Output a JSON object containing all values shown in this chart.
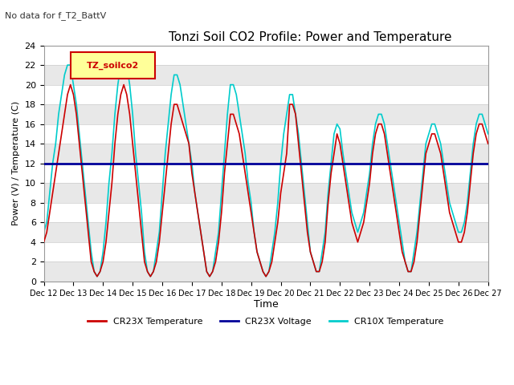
{
  "title": "Tonzi Soil CO2 Profile: Power and Temperature",
  "subtitle": "No data for f_T2_BattV",
  "ylabel": "Power (V) / Temperature (C)",
  "xlabel": "Time",
  "ylim": [
    0,
    24
  ],
  "yticks": [
    0,
    2,
    4,
    6,
    8,
    10,
    12,
    14,
    16,
    18,
    20,
    22,
    24
  ],
  "xtick_labels": [
    "Dec 12",
    "Dec 13",
    "Dec 14",
    "Dec 15",
    "Dec 16",
    "Dec 17",
    "Dec 18",
    "Dec 19",
    "Dec 20",
    "Dec 21",
    "Dec 22",
    "Dec 23",
    "Dec 24",
    "Dec 25",
    "Dec 26",
    "Dec 27"
  ],
  "legend_box_label": "TZ_soilco2",
  "legend_box_color": "#FFFF99",
  "legend_box_edge": "#CC0000",
  "band_colors": [
    "#E8E8E8",
    "#FFFFFF"
  ],
  "cr23x_temp_color": "#CC0000",
  "cr23x_volt_color": "#000099",
  "cr10x_temp_color": "#00CCCC",
  "voltage_value": 12.0,
  "cr23x_temp_x": [
    12,
    12.1,
    12.2,
    12.3,
    12.4,
    12.5,
    12.6,
    12.7,
    12.8,
    12.9,
    13,
    13.1,
    13.2,
    13.3,
    13.4,
    13.5,
    13.6,
    13.7,
    13.8,
    13.9,
    14,
    14.1,
    14.2,
    14.3,
    14.4,
    14.5,
    14.6,
    14.7,
    14.8,
    14.9,
    15,
    15.1,
    15.2,
    15.3,
    15.4,
    15.5,
    15.6,
    15.7,
    15.8,
    15.9,
    16,
    16.1,
    16.2,
    16.3,
    16.4,
    16.5,
    16.6,
    16.7,
    16.8,
    16.9,
    17,
    17.1,
    17.2,
    17.3,
    17.4,
    17.5,
    17.6,
    17.7,
    17.8,
    17.9,
    18,
    18.1,
    18.2,
    18.3,
    18.4,
    18.5,
    18.6,
    18.7,
    18.8,
    18.9,
    19,
    19.1,
    19.2,
    19.3,
    19.4,
    19.5,
    19.6,
    19.7,
    19.8,
    19.9,
    20,
    20.1,
    20.2,
    20.3,
    20.4,
    20.5,
    20.6,
    20.7,
    20.8,
    20.9,
    21,
    21.1,
    21.2,
    21.3,
    21.4,
    21.5,
    21.6,
    21.7,
    21.8,
    21.9,
    22,
    22.1,
    22.2,
    22.3,
    22.4,
    22.5,
    22.6,
    22.7,
    22.8,
    22.9,
    23,
    23.1,
    23.2,
    23.3,
    23.4,
    23.5,
    23.6,
    23.7,
    23.8,
    23.9,
    24,
    24.1,
    24.2,
    24.3,
    24.4,
    24.5,
    24.6,
    24.7,
    24.8,
    24.9,
    25,
    25.1,
    25.2,
    25.3,
    25.4,
    25.5,
    25.6,
    25.7,
    25.8,
    25.9,
    26,
    26.1,
    26.2,
    26.3,
    26.4,
    26.5,
    26.6,
    26.7,
    26.8,
    26.9,
    27
  ],
  "cr23x_temp_y": [
    4,
    5,
    7,
    9,
    11,
    13,
    15,
    17,
    19,
    20,
    19,
    17,
    14,
    11,
    8,
    5,
    2,
    1,
    0.5,
    1,
    2,
    4,
    7,
    10,
    14,
    17,
    19,
    20,
    19,
    17,
    14,
    11,
    8,
    5,
    2,
    1,
    0.5,
    1,
    2,
    4,
    7,
    10,
    13,
    16,
    18,
    18,
    17,
    16,
    15,
    14,
    11,
    9,
    7,
    5,
    3,
    1,
    0.5,
    1,
    2,
    4,
    7,
    11,
    14,
    17,
    17,
    16,
    15,
    13,
    11,
    9,
    7,
    5,
    3,
    2,
    1,
    0.5,
    1,
    2,
    4,
    6,
    9,
    11,
    13,
    18,
    18,
    17,
    14,
    11,
    8,
    5,
    3,
    2,
    1,
    1,
    2,
    4,
    8,
    11,
    13,
    15,
    14,
    12,
    10,
    8,
    6,
    5,
    4,
    5,
    6,
    8,
    10,
    13,
    15,
    16,
    16,
    15,
    13,
    11,
    9,
    7,
    5,
    3,
    2,
    1,
    1,
    2,
    4,
    7,
    10,
    13,
    14,
    15,
    15,
    14,
    13,
    11,
    9,
    7,
    6,
    5,
    4,
    4,
    5,
    7,
    10,
    13,
    15,
    16,
    16,
    15,
    14
  ],
  "cr10x_temp_x": [
    12,
    12.1,
    12.2,
    12.3,
    12.4,
    12.5,
    12.6,
    12.7,
    12.8,
    12.9,
    13,
    13.1,
    13.2,
    13.3,
    13.4,
    13.5,
    13.6,
    13.7,
    13.8,
    13.9,
    14,
    14.1,
    14.2,
    14.3,
    14.4,
    14.5,
    14.6,
    14.7,
    14.8,
    14.9,
    15,
    15.1,
    15.2,
    15.3,
    15.4,
    15.5,
    15.6,
    15.7,
    15.8,
    15.9,
    16,
    16.1,
    16.2,
    16.3,
    16.4,
    16.5,
    16.6,
    16.7,
    16.8,
    16.9,
    17,
    17.1,
    17.2,
    17.3,
    17.4,
    17.5,
    17.6,
    17.7,
    17.8,
    17.9,
    18,
    18.1,
    18.2,
    18.3,
    18.4,
    18.5,
    18.6,
    18.7,
    18.8,
    18.9,
    19,
    19.1,
    19.2,
    19.3,
    19.4,
    19.5,
    19.6,
    19.7,
    19.8,
    19.9,
    20,
    20.1,
    20.2,
    20.3,
    20.4,
    20.5,
    20.6,
    20.7,
    20.8,
    20.9,
    21,
    21.1,
    21.2,
    21.3,
    21.4,
    21.5,
    21.6,
    21.7,
    21.8,
    21.9,
    22,
    22.1,
    22.2,
    22.3,
    22.4,
    22.5,
    22.6,
    22.7,
    22.8,
    22.9,
    23,
    23.1,
    23.2,
    23.3,
    23.4,
    23.5,
    23.6,
    23.7,
    23.8,
    23.9,
    24,
    24.1,
    24.2,
    24.3,
    24.4,
    24.5,
    24.6,
    24.7,
    24.8,
    24.9,
    25,
    25.1,
    25.2,
    25.3,
    25.4,
    25.5,
    25.6,
    25.7,
    25.8,
    25.9,
    26,
    26.1,
    26.2,
    26.3,
    26.4,
    26.5,
    26.6,
    26.7,
    26.8,
    26.9,
    27
  ],
  "cr10x_temp_y": [
    5,
    6,
    9,
    12,
    14,
    17,
    19,
    21,
    22,
    22,
    20,
    18,
    15,
    12,
    9,
    6,
    3,
    1,
    0.5,
    1,
    3,
    6,
    10,
    13,
    17,
    20,
    22,
    23,
    22,
    20,
    17,
    13,
    10,
    7,
    3,
    1,
    0.5,
    1,
    3,
    5,
    9,
    13,
    16,
    19,
    21,
    21,
    20,
    18,
    16,
    14,
    12,
    9,
    7,
    5,
    3,
    1,
    0.5,
    1,
    3,
    5,
    9,
    13,
    17,
    20,
    20,
    19,
    17,
    15,
    13,
    10,
    8,
    5,
    3,
    2,
    1,
    0.5,
    1,
    3,
    5,
    8,
    12,
    15,
    17,
    19,
    19,
    17,
    15,
    12,
    9,
    6,
    3,
    2,
    1,
    1,
    3,
    5,
    9,
    12,
    15,
    16,
    15.5,
    13,
    11,
    9,
    7,
    6,
    5,
    6,
    7,
    9,
    11,
    14,
    16,
    17,
    17,
    16,
    14,
    12,
    10,
    8,
    6,
    4,
    2,
    1,
    1,
    3,
    5,
    8,
    11,
    14,
    15,
    16,
    16,
    15,
    14,
    12,
    10,
    8,
    7,
    6,
    5,
    5,
    6,
    8,
    11,
    14,
    16,
    17,
    17,
    16,
    15
  ]
}
